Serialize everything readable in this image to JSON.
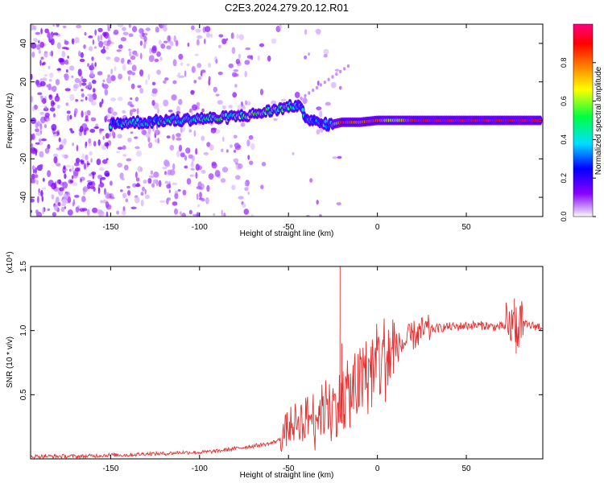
{
  "title": "C2E3.2024.279.20.12.R01",
  "chart_data": [
    {
      "type": "heatmap",
      "xlabel": "Height of straight line (km)",
      "ylabel": "Frequency (Hz)",
      "xlim": [
        -195,
        93
      ],
      "ylim": [
        -50,
        50
      ],
      "xticks": [
        -150,
        -100,
        -50,
        0,
        50
      ],
      "yticks": [
        -40,
        -20,
        0,
        20,
        40
      ],
      "colorbar": {
        "label": "Normalized spectral amplitude",
        "range": [
          0,
          1
        ],
        "ticks": [
          "0.0",
          "0.2",
          "0.4",
          "0.6",
          "0.8"
        ],
        "tick_values": [
          0,
          0.2,
          0.4,
          0.6,
          0.8
        ],
        "colormap": [
          "#ffffff",
          "#8a00ff",
          "#0000ff",
          "#00e0ff",
          "#00ff40",
          "#ffff00",
          "#ff8000",
          "#ff0000",
          "#ff0080"
        ]
      },
      "ridge": {
        "x": [
          -150,
          -140,
          -130,
          -120,
          -110,
          -100,
          -90,
          -80,
          -70,
          -60,
          -50,
          -45,
          -40,
          -35,
          -30,
          -25,
          -20,
          -10,
          0,
          10,
          20,
          30,
          40,
          50,
          60,
          70,
          80,
          92
        ],
        "frequency": [
          -2,
          -1,
          -1,
          0,
          0,
          1,
          1,
          2,
          3,
          5,
          7,
          8,
          2,
          -1,
          -2,
          -2,
          -1,
          -1,
          0,
          0,
          0,
          0,
          0,
          0,
          0,
          0,
          0,
          0
        ],
        "amplitude": [
          0.3,
          0.4,
          0.35,
          0.4,
          0.45,
          0.45,
          0.5,
          0.5,
          0.55,
          0.5,
          0.45,
          0.3,
          0.35,
          0.3,
          0.3,
          0.45,
          0.9,
          0.8,
          0.85,
          0.6,
          0.9,
          0.95,
          0.95,
          0.95,
          0.95,
          0.9,
          0.95,
          0.9
        ]
      }
    },
    {
      "type": "line",
      "xlabel": "Height of straight line (km)",
      "ylabel": "SNR (10 * v/v)",
      "exponent_label": "(x10⁴)",
      "xlim": [
        -195,
        93
      ],
      "ylim": [
        0,
        1.5
      ],
      "xticks": [
        -150,
        -100,
        -50,
        0,
        50
      ],
      "yticks": [
        0.5,
        1.0,
        1.5
      ],
      "ytick_labels": [
        "0.5",
        "1.0",
        "1.5"
      ],
      "color": "#e53030",
      "series": [
        {
          "x": [
            -195,
            -180,
            -165,
            -150,
            -140,
            -130,
            -120,
            -110,
            -100,
            -90,
            -80,
            -70,
            -60,
            -55,
            -50,
            -45,
            -40,
            -35,
            -30,
            -25,
            -20,
            -15,
            -10,
            -5,
            0,
            5,
            10,
            15,
            20,
            25,
            30,
            35,
            40,
            45,
            50,
            55,
            60,
            65,
            70,
            75,
            80,
            85,
            92
          ],
          "y": [
            0.02,
            0.02,
            0.02,
            0.03,
            0.03,
            0.04,
            0.04,
            0.05,
            0.05,
            0.06,
            0.08,
            0.1,
            0.12,
            0.15,
            0.25,
            0.3,
            0.32,
            0.35,
            0.38,
            0.4,
            0.45,
            0.52,
            0.58,
            0.66,
            0.74,
            0.8,
            0.86,
            0.9,
            0.96,
            0.99,
            1.01,
            1.02,
            1.03,
            1.03,
            1.04,
            1.04,
            1.04,
            1.03,
            1.03,
            1.04,
            1.05,
            1.04,
            1.03
          ]
        }
      ],
      "spikes": [
        {
          "x": -21,
          "y": 1.5
        },
        {
          "x": -20,
          "y": 0.9
        },
        {
          "x": 77,
          "y": 1.25
        },
        {
          "x": 78,
          "y": 0.82
        }
      ]
    }
  ]
}
